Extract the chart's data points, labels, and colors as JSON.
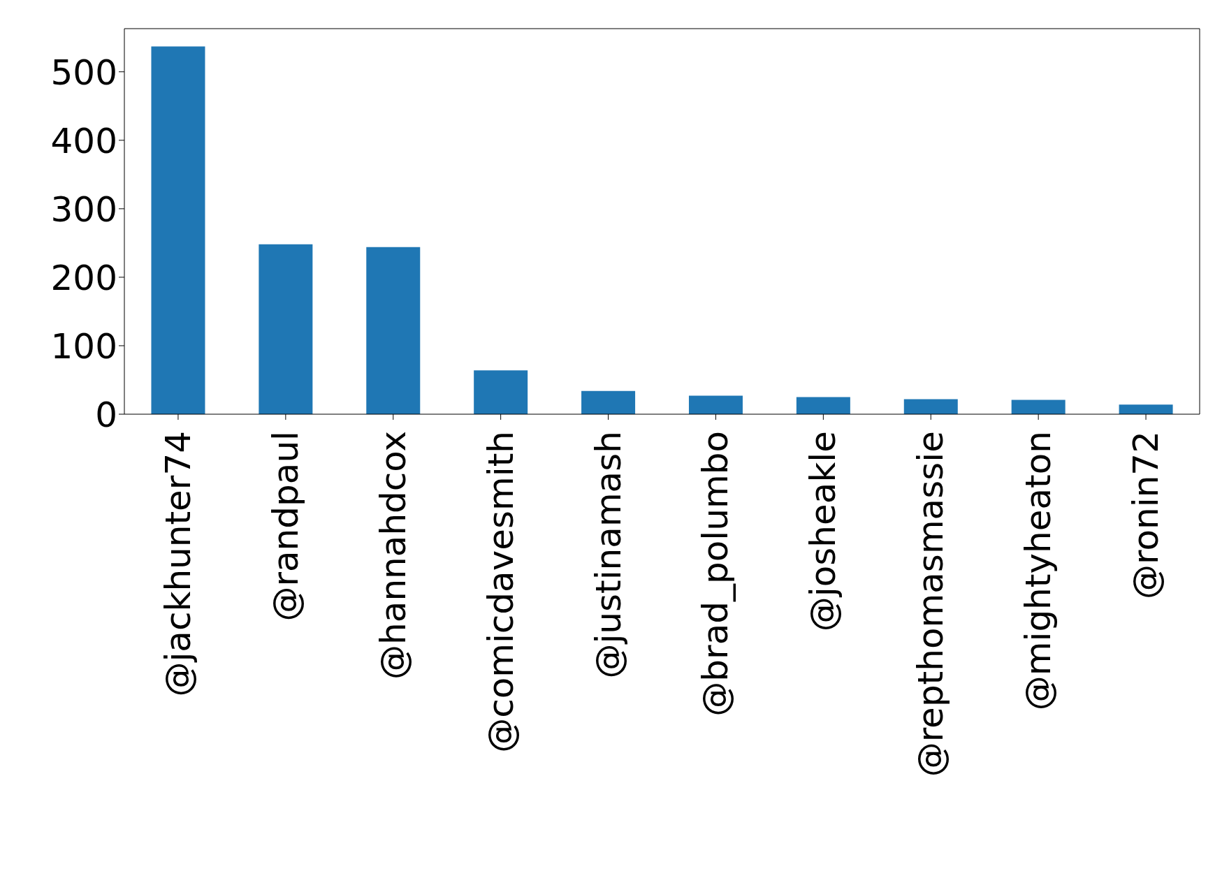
{
  "chart_data": {
    "type": "bar",
    "categories": [
      "@jackhunter74",
      "@randpaul",
      "@hannahdcox",
      "@comicdavesmith",
      "@justinamash",
      "@brad_polumbo",
      "@josheakle",
      "@repthomasmassie",
      "@mightyheaton",
      "@ronin72"
    ],
    "values": [
      537,
      248,
      244,
      64,
      34,
      27,
      25,
      22,
      21,
      14
    ],
    "color": "#1f77b4",
    "ylim": [
      0,
      563
    ],
    "yticks": [
      0,
      100,
      200,
      300,
      400,
      500
    ],
    "grid": false
  }
}
